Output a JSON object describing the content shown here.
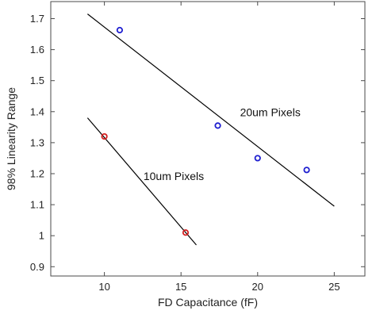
{
  "chart_data": {
    "type": "scatter",
    "xlabel": "FD Capacitance (fF)",
    "ylabel": "98% Linearity Range",
    "xlim": [
      6.5,
      27
    ],
    "ylim": [
      0.87,
      1.755
    ],
    "xticks": [
      "10",
      "15",
      "20",
      "25"
    ],
    "yticks": [
      "0.9",
      "1",
      "1.1",
      "1.2",
      "1.3",
      "1.4",
      "1.5",
      "1.6",
      "1.7"
    ],
    "grid": false,
    "series": [
      {
        "color": "#1f1fd0",
        "points": [
          {
            "x": 11.0,
            "y": 1.663
          },
          {
            "x": 17.4,
            "y": 1.355
          },
          {
            "x": 20.0,
            "y": 1.25
          },
          {
            "x": 23.2,
            "y": 1.212
          }
        ],
        "fit": {
          "x1": 8.9,
          "y1": 1.715,
          "x2": 25.0,
          "y2": 1.095
        }
      },
      {
        "color": "#d42020",
        "points": [
          {
            "x": 10.0,
            "y": 1.32
          },
          {
            "x": 15.3,
            "y": 1.01
          }
        ],
        "fit": {
          "x1": 8.9,
          "y1": 1.38,
          "x2": 16.0,
          "y2": 0.97
        }
      }
    ],
    "annotations": [
      {
        "text": "20um Pixels",
        "x": 18.85,
        "y": 1.385
      },
      {
        "text": "10um Pixels",
        "x": 12.55,
        "y": 1.18
      }
    ]
  }
}
